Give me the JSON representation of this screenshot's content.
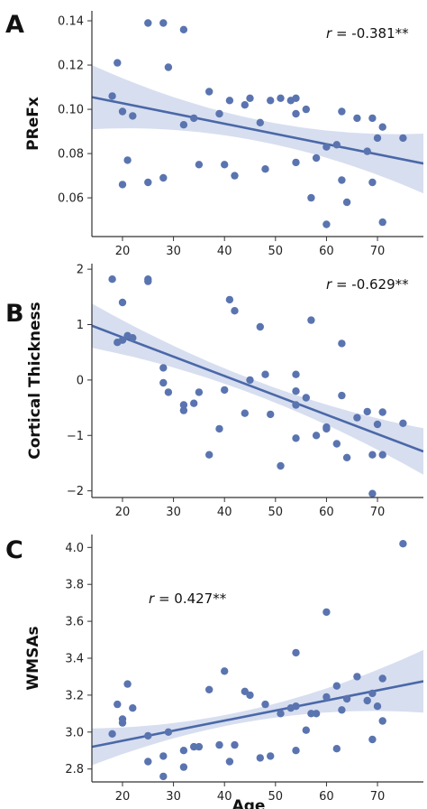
{
  "colors": {
    "point": "#5a74b0",
    "line": "#4a68a8",
    "band": "#c9d3ea",
    "axis": "#333333"
  },
  "chart_data": [
    {
      "type": "scatter",
      "panel_letter": "A",
      "ylabel": "PReFx",
      "xlabel": "",
      "xlim": [
        14,
        79
      ],
      "ylim": [
        0.0425,
        0.1445
      ],
      "x_ticks": [
        20,
        30,
        40,
        50,
        60,
        70
      ],
      "x_tick_labels": [
        "20",
        "30",
        "40",
        "50",
        "60",
        "70"
      ],
      "y_ticks": [
        0.06,
        0.08,
        0.1,
        0.12,
        0.14
      ],
      "y_tick_labels": [
        "0.06",
        "0.08",
        "0.10",
        "0.12",
        "0.14"
      ],
      "annotation": {
        "r": "r",
        "value": " = -0.381**",
        "placement": "top-right"
      },
      "fit": {
        "x": [
          14,
          79
        ],
        "y": [
          0.1055,
          0.0755
        ],
        "band_hw_start": 0.0145,
        "band_hw_mid": 0.0048,
        "band_hw_end": 0.0135
      },
      "points": [
        [
          18,
          0.106
        ],
        [
          19,
          0.121
        ],
        [
          20,
          0.099
        ],
        [
          20,
          0.066
        ],
        [
          21,
          0.077
        ],
        [
          22,
          0.097
        ],
        [
          25,
          0.139
        ],
        [
          25,
          0.067
        ],
        [
          28,
          0.139
        ],
        [
          28,
          0.069
        ],
        [
          29,
          0.119
        ],
        [
          32,
          0.136
        ],
        [
          32,
          0.093
        ],
        [
          34,
          0.096
        ],
        [
          35,
          0.075
        ],
        [
          37,
          0.108
        ],
        [
          39,
          0.098
        ],
        [
          40,
          0.075
        ],
        [
          41,
          0.104
        ],
        [
          42,
          0.07
        ],
        [
          44,
          0.102
        ],
        [
          45,
          0.105
        ],
        [
          47,
          0.094
        ],
        [
          48,
          0.073
        ],
        [
          49,
          0.104
        ],
        [
          51,
          0.105
        ],
        [
          53,
          0.104
        ],
        [
          54,
          0.105
        ],
        [
          54,
          0.098
        ],
        [
          54,
          0.076
        ],
        [
          56,
          0.1
        ],
        [
          57,
          0.06
        ],
        [
          58,
          0.078
        ],
        [
          60,
          0.083
        ],
        [
          60,
          0.048
        ],
        [
          62,
          0.084
        ],
        [
          63,
          0.099
        ],
        [
          63,
          0.068
        ],
        [
          64,
          0.058
        ],
        [
          66,
          0.096
        ],
        [
          68,
          0.081
        ],
        [
          69,
          0.067
        ],
        [
          69,
          0.096
        ],
        [
          70,
          0.087
        ],
        [
          71,
          0.092
        ],
        [
          71,
          0.049
        ],
        [
          75,
          0.087
        ]
      ]
    },
    {
      "type": "scatter",
      "panel_letter": "B",
      "ylabel": "Cortical Thickness",
      "xlabel": "",
      "xlim": [
        14,
        79
      ],
      "ylim": [
        -2.12,
        2.1
      ],
      "x_ticks": [
        20,
        30,
        40,
        50,
        60,
        70
      ],
      "x_tick_labels": [
        "20",
        "30",
        "40",
        "50",
        "60",
        "70"
      ],
      "y_ticks": [
        -2,
        -1,
        0,
        1,
        2
      ],
      "y_tick_labels": [
        "−2",
        "−1",
        "0",
        "1",
        "2"
      ],
      "annotation": {
        "r": "r",
        "value": " = -0.629**",
        "placement": "top-right"
      },
      "fit": {
        "x": [
          14,
          79
        ],
        "y": [
          0.98,
          -1.29
        ],
        "band_hw_start": 0.4,
        "band_hw_mid": 0.13,
        "band_hw_end": 0.42
      },
      "points": [
        [
          18,
          1.82
        ],
        [
          19,
          0.68
        ],
        [
          20,
          1.4
        ],
        [
          20,
          0.72
        ],
        [
          21,
          0.8
        ],
        [
          22,
          0.76
        ],
        [
          25,
          1.82
        ],
        [
          25,
          1.78
        ],
        [
          28,
          0.22
        ],
        [
          28,
          -0.05
        ],
        [
          29,
          -0.22
        ],
        [
          32,
          -0.45
        ],
        [
          32,
          -0.55
        ],
        [
          34,
          -0.42
        ],
        [
          35,
          -0.22
        ],
        [
          37,
          -1.35
        ],
        [
          39,
          -0.88
        ],
        [
          40,
          -0.18
        ],
        [
          41,
          1.45
        ],
        [
          42,
          1.25
        ],
        [
          44,
          -0.6
        ],
        [
          45,
          0.0
        ],
        [
          47,
          0.96
        ],
        [
          48,
          0.1
        ],
        [
          49,
          -0.62
        ],
        [
          51,
          -1.55
        ],
        [
          54,
          0.1
        ],
        [
          54,
          -0.2
        ],
        [
          54,
          -0.45
        ],
        [
          54,
          -1.05
        ],
        [
          56,
          -0.32
        ],
        [
          57,
          1.08
        ],
        [
          58,
          -1.0
        ],
        [
          60,
          -0.85
        ],
        [
          60,
          -0.88
        ],
        [
          62,
          -1.15
        ],
        [
          63,
          0.66
        ],
        [
          63,
          -0.28
        ],
        [
          64,
          -1.4
        ],
        [
          66,
          -0.68
        ],
        [
          68,
          -0.57
        ],
        [
          69,
          -1.35
        ],
        [
          69,
          -2.05
        ],
        [
          70,
          -0.8
        ],
        [
          71,
          -0.58
        ],
        [
          71,
          -1.35
        ],
        [
          75,
          -0.78
        ]
      ]
    },
    {
      "type": "scatter",
      "panel_letter": "C",
      "ylabel": "WMSAs",
      "xlabel": "Age",
      "xlim": [
        14,
        79
      ],
      "ylim": [
        2.73,
        4.07
      ],
      "x_ticks": [
        20,
        30,
        40,
        50,
        60,
        70
      ],
      "x_tick_labels": [
        "20",
        "30",
        "40",
        "50",
        "60",
        "70"
      ],
      "y_ticks": [
        2.8,
        3.0,
        3.2,
        3.4,
        3.6,
        3.8,
        4.0
      ],
      "y_tick_labels": [
        "2.8",
        "3.0",
        "3.2",
        "3.4",
        "3.6",
        "3.8",
        "4.0"
      ],
      "annotation": {
        "r": "r",
        "value": " = 0.427**",
        "placement": "top-left"
      },
      "fit": {
        "x": [
          14,
          79
        ],
        "y": [
          2.92,
          3.275
        ],
        "band_hw_start": 0.1,
        "band_hw_mid": 0.033,
        "band_hw_end": 0.17
      },
      "points": [
        [
          18,
          2.99
        ],
        [
          19,
          3.15
        ],
        [
          20,
          3.07
        ],
        [
          20,
          3.05
        ],
        [
          21,
          3.26
        ],
        [
          22,
          3.13
        ],
        [
          25,
          2.98
        ],
        [
          25,
          2.84
        ],
        [
          28,
          2.87
        ],
        [
          28,
          2.76
        ],
        [
          29,
          3.0
        ],
        [
          32,
          2.9
        ],
        [
          32,
          2.81
        ],
        [
          34,
          2.92
        ],
        [
          35,
          2.92
        ],
        [
          37,
          3.23
        ],
        [
          39,
          2.93
        ],
        [
          40,
          3.33
        ],
        [
          41,
          2.84
        ],
        [
          42,
          2.93
        ],
        [
          44,
          3.22
        ],
        [
          45,
          3.2
        ],
        [
          47,
          2.86
        ],
        [
          48,
          3.15
        ],
        [
          49,
          2.87
        ],
        [
          51,
          3.1
        ],
        [
          53,
          3.13
        ],
        [
          54,
          3.43
        ],
        [
          54,
          3.14
        ],
        [
          54,
          2.9
        ],
        [
          56,
          3.01
        ],
        [
          57,
          3.1
        ],
        [
          58,
          3.1
        ],
        [
          60,
          3.65
        ],
        [
          60,
          3.19
        ],
        [
          62,
          2.91
        ],
        [
          62,
          3.25
        ],
        [
          63,
          3.12
        ],
        [
          64,
          3.18
        ],
        [
          66,
          3.3
        ],
        [
          68,
          3.17
        ],
        [
          69,
          3.21
        ],
        [
          69,
          2.96
        ],
        [
          70,
          3.14
        ],
        [
          71,
          3.29
        ],
        [
          71,
          3.06
        ],
        [
          75,
          4.02
        ]
      ]
    }
  ]
}
